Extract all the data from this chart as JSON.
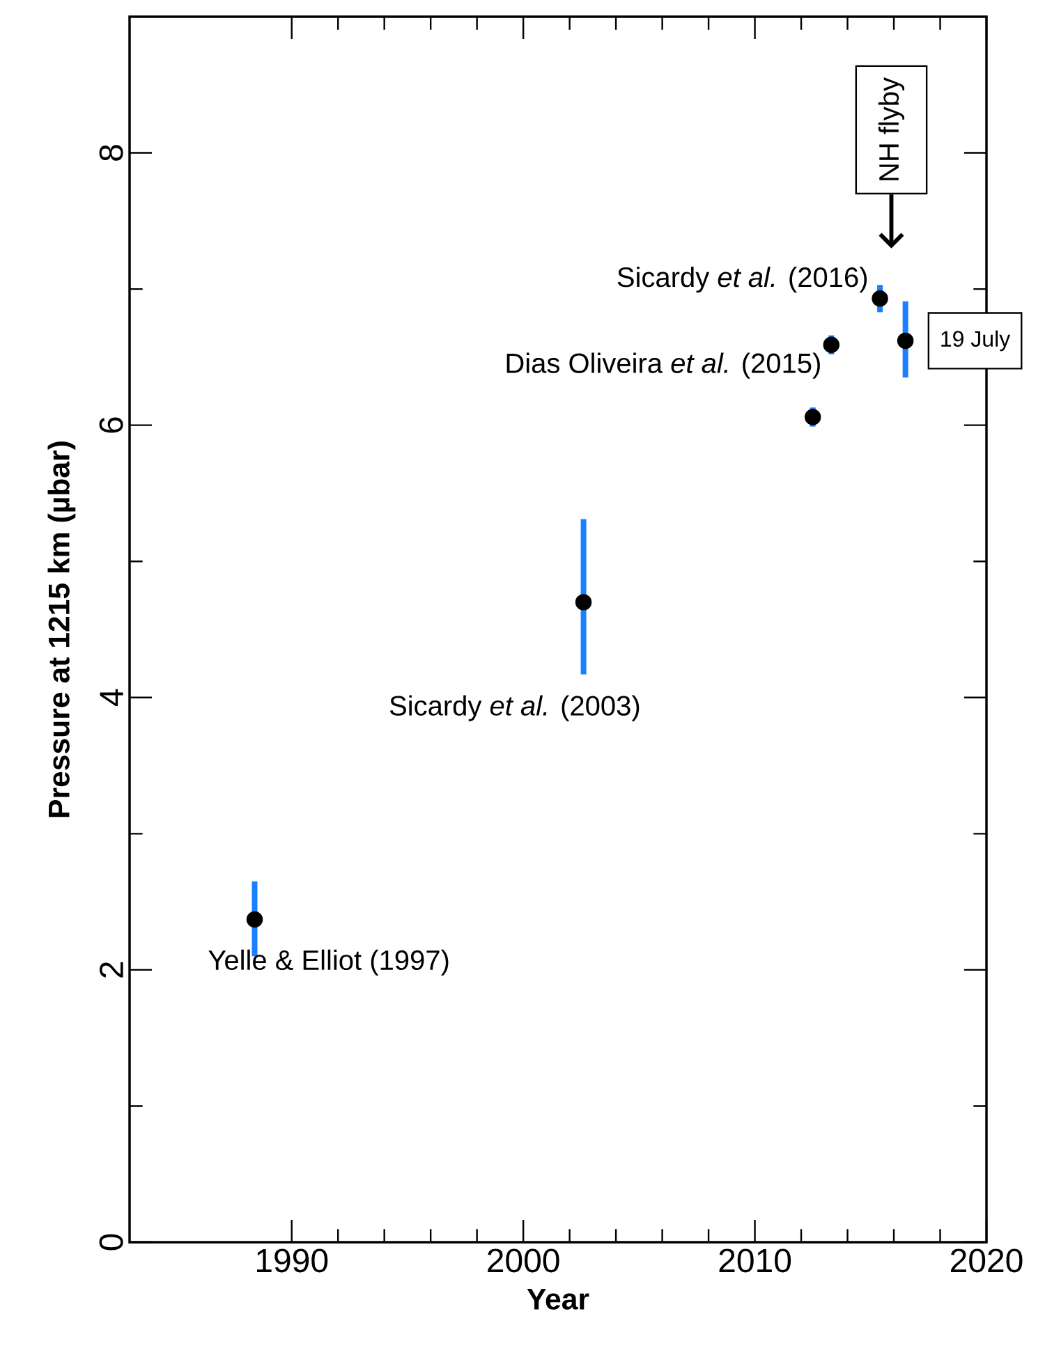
{
  "chart_data": {
    "type": "scatter",
    "xlabel": "Year",
    "ylabel": "Pressure at 1215 km (µbar)",
    "xlim": [
      1983,
      2020
    ],
    "xticks": [
      1990,
      2000,
      2010,
      2020
    ],
    "ylim": [
      0,
      9
    ],
    "yticks": [
      0,
      2,
      4,
      6,
      8
    ],
    "series": [
      {
        "color": "#000000",
        "x": [
          1988.4,
          2002.6,
          2012.5,
          2013.3,
          2015.4,
          2016.5
        ],
        "values": [
          2.37,
          4.7,
          6.06,
          6.59,
          6.93,
          6.62
        ],
        "errors": [
          [
            2.1,
            2.65
          ],
          [
            4.17,
            5.31
          ],
          [
            5.99,
            6.13
          ],
          [
            6.52,
            6.66
          ],
          [
            6.83,
            7.03
          ],
          [
            6.35,
            6.91
          ]
        ]
      }
    ],
    "annotations": [
      {
        "text": "Yelle & Elliot (1997)",
        "x": 1988.4,
        "y": 2.37
      },
      {
        "text": "Sicardy *et al.* (2003)",
        "x": 2002.6,
        "y": 4.17
      },
      {
        "text": "Dias Oliveira *et al.* (2015)",
        "x": 2013.3,
        "y": 6.59
      },
      {
        "text": "Sicardy *et al.* (2016)",
        "x": 2015.4,
        "y": 6.93
      },
      "NH flyby",
      {
        "text": "19 July",
        "x": 2016.5,
        "y": 6.62
      }
    ]
  }
}
